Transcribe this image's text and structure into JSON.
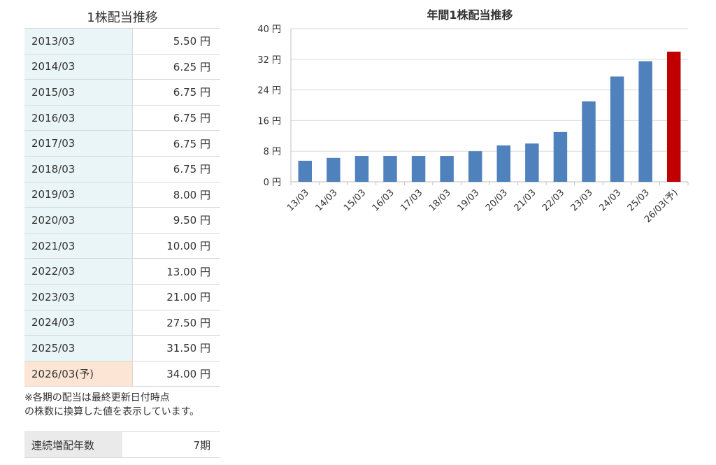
{
  "table": {
    "title": "1株配当推移",
    "unit": "円",
    "rows": [
      {
        "period": "2013/03",
        "value": "5.50"
      },
      {
        "period": "2014/03",
        "value": "6.25"
      },
      {
        "period": "2015/03",
        "value": "6.75"
      },
      {
        "period": "2016/03",
        "value": "6.75"
      },
      {
        "period": "2017/03",
        "value": "6.75"
      },
      {
        "period": "2018/03",
        "value": "6.75"
      },
      {
        "period": "2019/03",
        "value": "8.00"
      },
      {
        "period": "2020/03",
        "value": "9.50"
      },
      {
        "period": "2021/03",
        "value": "10.00"
      },
      {
        "period": "2022/03",
        "value": "13.00"
      },
      {
        "period": "2023/03",
        "value": "21.00"
      },
      {
        "period": "2024/03",
        "value": "27.50"
      },
      {
        "period": "2025/03",
        "value": "31.50"
      },
      {
        "period": "2026/03(予)",
        "value": "34.00",
        "forecast": true
      }
    ],
    "note_line1": "※各期の配当は最終更新日付時点",
    "note_line2": "の株数に換算した値を表示しています。"
  },
  "streak": {
    "label": "連続増配年数",
    "value": "7期"
  },
  "colors": {
    "bar": "#4f81bd",
    "forecast_bar": "#c00000",
    "grid": "#d9d9d9",
    "actual_row": "#eaf5f7",
    "forecast_row": "#fde5d5"
  },
  "chart_data": {
    "type": "bar",
    "title": "年間1株配当推移",
    "categories": [
      "13/03",
      "14/03",
      "15/03",
      "16/03",
      "17/03",
      "18/03",
      "19/03",
      "20/03",
      "21/03",
      "22/03",
      "23/03",
      "24/03",
      "25/03",
      "26/03(予)"
    ],
    "values": [
      5.5,
      6.25,
      6.75,
      6.75,
      6.75,
      6.75,
      8.0,
      9.5,
      10.0,
      13.0,
      21.0,
      27.5,
      31.5,
      34.0
    ],
    "forecast_index": 13,
    "yticks": [
      0,
      8,
      16,
      24,
      32,
      40
    ],
    "ytick_suffix": " 円",
    "ylim": [
      0,
      40
    ],
    "grid": true,
    "legend": "none"
  }
}
